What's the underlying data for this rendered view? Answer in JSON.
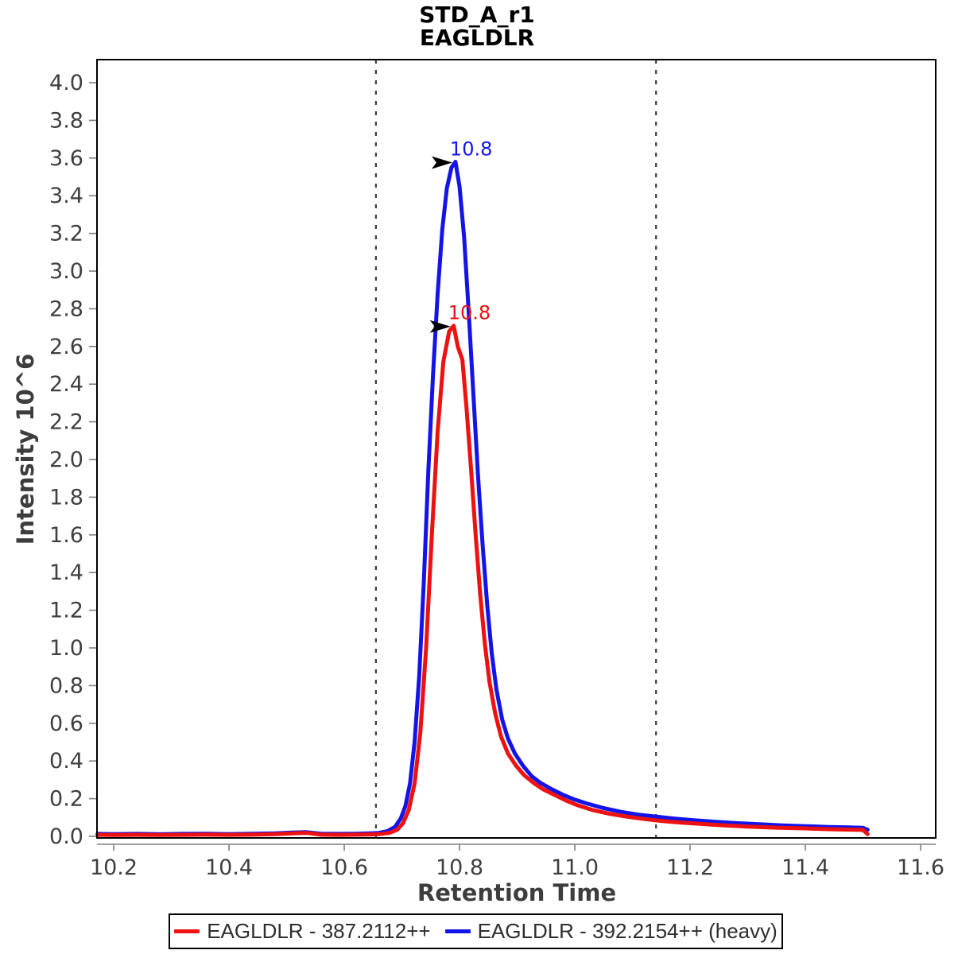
{
  "title": {
    "line1": "STD_A_r1",
    "line2": "EAGLDLR"
  },
  "axes": {
    "x_label": "Retention Time",
    "y_label": "Intensity 10^6",
    "x_tick_labels": [
      "10.2",
      "10.4",
      "10.6",
      "10.8",
      "11.0",
      "11.2",
      "11.4",
      "11.6"
    ],
    "y_tick_labels": [
      "0.0",
      "0.2",
      "0.4",
      "0.6",
      "0.8",
      "1.0",
      "1.2",
      "1.4",
      "1.6",
      "1.8",
      "2.0",
      "2.2",
      "2.4",
      "2.6",
      "2.8",
      "3.0",
      "3.2",
      "3.4",
      "3.6",
      "3.8",
      "4.0"
    ]
  },
  "chart_data": {
    "type": "line",
    "title": "STD_A_r1 EAGLDLR",
    "xlabel": "Retention Time",
    "ylabel": "Intensity 10^6",
    "xlim": [
      10.17,
      11.63
    ],
    "ylim": [
      0,
      4.12
    ],
    "grid": false,
    "legend_position": "bottom",
    "integration_boundaries": [
      10.655,
      11.141
    ],
    "boundary_line_color": "#3c3c3c",
    "series": [
      {
        "name": "EAGLDLR - 387.2112++",
        "color": "#ee1111",
        "peak_rt": 10.8,
        "peak_intensity": 2.71,
        "points": [
          [
            10.172,
            0.008
          ],
          [
            10.2,
            0.007
          ],
          [
            10.24,
            0.008
          ],
          [
            10.28,
            0.007
          ],
          [
            10.32,
            0.008
          ],
          [
            10.36,
            0.009
          ],
          [
            10.4,
            0.008
          ],
          [
            10.44,
            0.009
          ],
          [
            10.48,
            0.012
          ],
          [
            10.51,
            0.016
          ],
          [
            10.535,
            0.018
          ],
          [
            10.56,
            0.009
          ],
          [
            10.59,
            0.008
          ],
          [
            10.62,
            0.009
          ],
          [
            10.645,
            0.01
          ],
          [
            10.66,
            0.012
          ],
          [
            10.678,
            0.018
          ],
          [
            10.692,
            0.035
          ],
          [
            10.702,
            0.07
          ],
          [
            10.712,
            0.14
          ],
          [
            10.722,
            0.28
          ],
          [
            10.732,
            0.55
          ],
          [
            10.742,
            1.0
          ],
          [
            10.752,
            1.6
          ],
          [
            10.762,
            2.15
          ],
          [
            10.772,
            2.52
          ],
          [
            10.782,
            2.68
          ],
          [
            10.79,
            2.71
          ],
          [
            10.797,
            2.6
          ],
          [
            10.805,
            2.53
          ],
          [
            10.812,
            2.28
          ],
          [
            10.82,
            1.95
          ],
          [
            10.828,
            1.6
          ],
          [
            10.836,
            1.28
          ],
          [
            10.844,
            1.02
          ],
          [
            10.852,
            0.82
          ],
          [
            10.862,
            0.65
          ],
          [
            10.872,
            0.53
          ],
          [
            10.884,
            0.44
          ],
          [
            10.898,
            0.375
          ],
          [
            10.912,
            0.325
          ],
          [
            10.928,
            0.285
          ],
          [
            10.945,
            0.25
          ],
          [
            10.965,
            0.22
          ],
          [
            10.985,
            0.19
          ],
          [
            11.005,
            0.165
          ],
          [
            11.03,
            0.14
          ],
          [
            11.06,
            0.12
          ],
          [
            11.09,
            0.105
          ],
          [
            11.12,
            0.092
          ],
          [
            11.15,
            0.082
          ],
          [
            11.18,
            0.074
          ],
          [
            11.22,
            0.066
          ],
          [
            11.26,
            0.058
          ],
          [
            11.3,
            0.052
          ],
          [
            11.35,
            0.046
          ],
          [
            11.4,
            0.042
          ],
          [
            11.44,
            0.038
          ],
          [
            11.47,
            0.036
          ],
          [
            11.5,
            0.034
          ],
          [
            11.508,
            0.012
          ]
        ]
      },
      {
        "name": "EAGLDLR - 392.2154++ (heavy)",
        "color": "#1414e8",
        "peak_rt": 10.8,
        "peak_intensity": 3.58,
        "points": [
          [
            10.172,
            0.013
          ],
          [
            10.2,
            0.012
          ],
          [
            10.24,
            0.013
          ],
          [
            10.28,
            0.011
          ],
          [
            10.32,
            0.013
          ],
          [
            10.36,
            0.014
          ],
          [
            10.4,
            0.012
          ],
          [
            10.44,
            0.014
          ],
          [
            10.48,
            0.016
          ],
          [
            10.51,
            0.02
          ],
          [
            10.535,
            0.022
          ],
          [
            10.56,
            0.014
          ],
          [
            10.59,
            0.013
          ],
          [
            10.62,
            0.014
          ],
          [
            10.645,
            0.016
          ],
          [
            10.66,
            0.018
          ],
          [
            10.675,
            0.028
          ],
          [
            10.688,
            0.05
          ],
          [
            10.698,
            0.095
          ],
          [
            10.706,
            0.16
          ],
          [
            10.714,
            0.28
          ],
          [
            10.722,
            0.5
          ],
          [
            10.73,
            0.85
          ],
          [
            10.738,
            1.35
          ],
          [
            10.746,
            1.95
          ],
          [
            10.754,
            2.45
          ],
          [
            10.762,
            2.88
          ],
          [
            10.77,
            3.22
          ],
          [
            10.778,
            3.44
          ],
          [
            10.786,
            3.55
          ],
          [
            10.793,
            3.58
          ],
          [
            10.8,
            3.45
          ],
          [
            10.808,
            3.18
          ],
          [
            10.816,
            2.78
          ],
          [
            10.824,
            2.35
          ],
          [
            10.832,
            1.92
          ],
          [
            10.84,
            1.55
          ],
          [
            10.848,
            1.23
          ],
          [
            10.856,
            0.97
          ],
          [
            10.864,
            0.78
          ],
          [
            10.874,
            0.62
          ],
          [
            10.884,
            0.52
          ],
          [
            10.896,
            0.44
          ],
          [
            10.91,
            0.375
          ],
          [
            10.925,
            0.32
          ],
          [
            10.94,
            0.285
          ],
          [
            10.96,
            0.25
          ],
          [
            10.98,
            0.22
          ],
          [
            11.0,
            0.195
          ],
          [
            11.02,
            0.175
          ],
          [
            11.05,
            0.15
          ],
          [
            11.08,
            0.13
          ],
          [
            11.11,
            0.115
          ],
          [
            11.14,
            0.105
          ],
          [
            11.17,
            0.095
          ],
          [
            11.2,
            0.087
          ],
          [
            11.24,
            0.078
          ],
          [
            11.28,
            0.07
          ],
          [
            11.32,
            0.064
          ],
          [
            11.36,
            0.058
          ],
          [
            11.4,
            0.054
          ],
          [
            11.44,
            0.05
          ],
          [
            11.47,
            0.048
          ],
          [
            11.5,
            0.045
          ],
          [
            11.508,
            0.035
          ]
        ]
      }
    ],
    "annotations": [
      {
        "text": "10.8",
        "rt": 10.79,
        "intensity": 2.71,
        "color": "#ee1111",
        "marker": "black-right-arrow"
      },
      {
        "text": "10.8",
        "rt": 10.793,
        "intensity": 3.58,
        "color": "#1414e8",
        "marker": "black-right-arrow"
      }
    ]
  },
  "legend": {
    "items": [
      {
        "label": "EAGLDLR - 387.2112++",
        "color": "#ee1111"
      },
      {
        "label": "EAGLDLR - 392.2154++ (heavy)",
        "color": "#1414e8"
      }
    ]
  }
}
